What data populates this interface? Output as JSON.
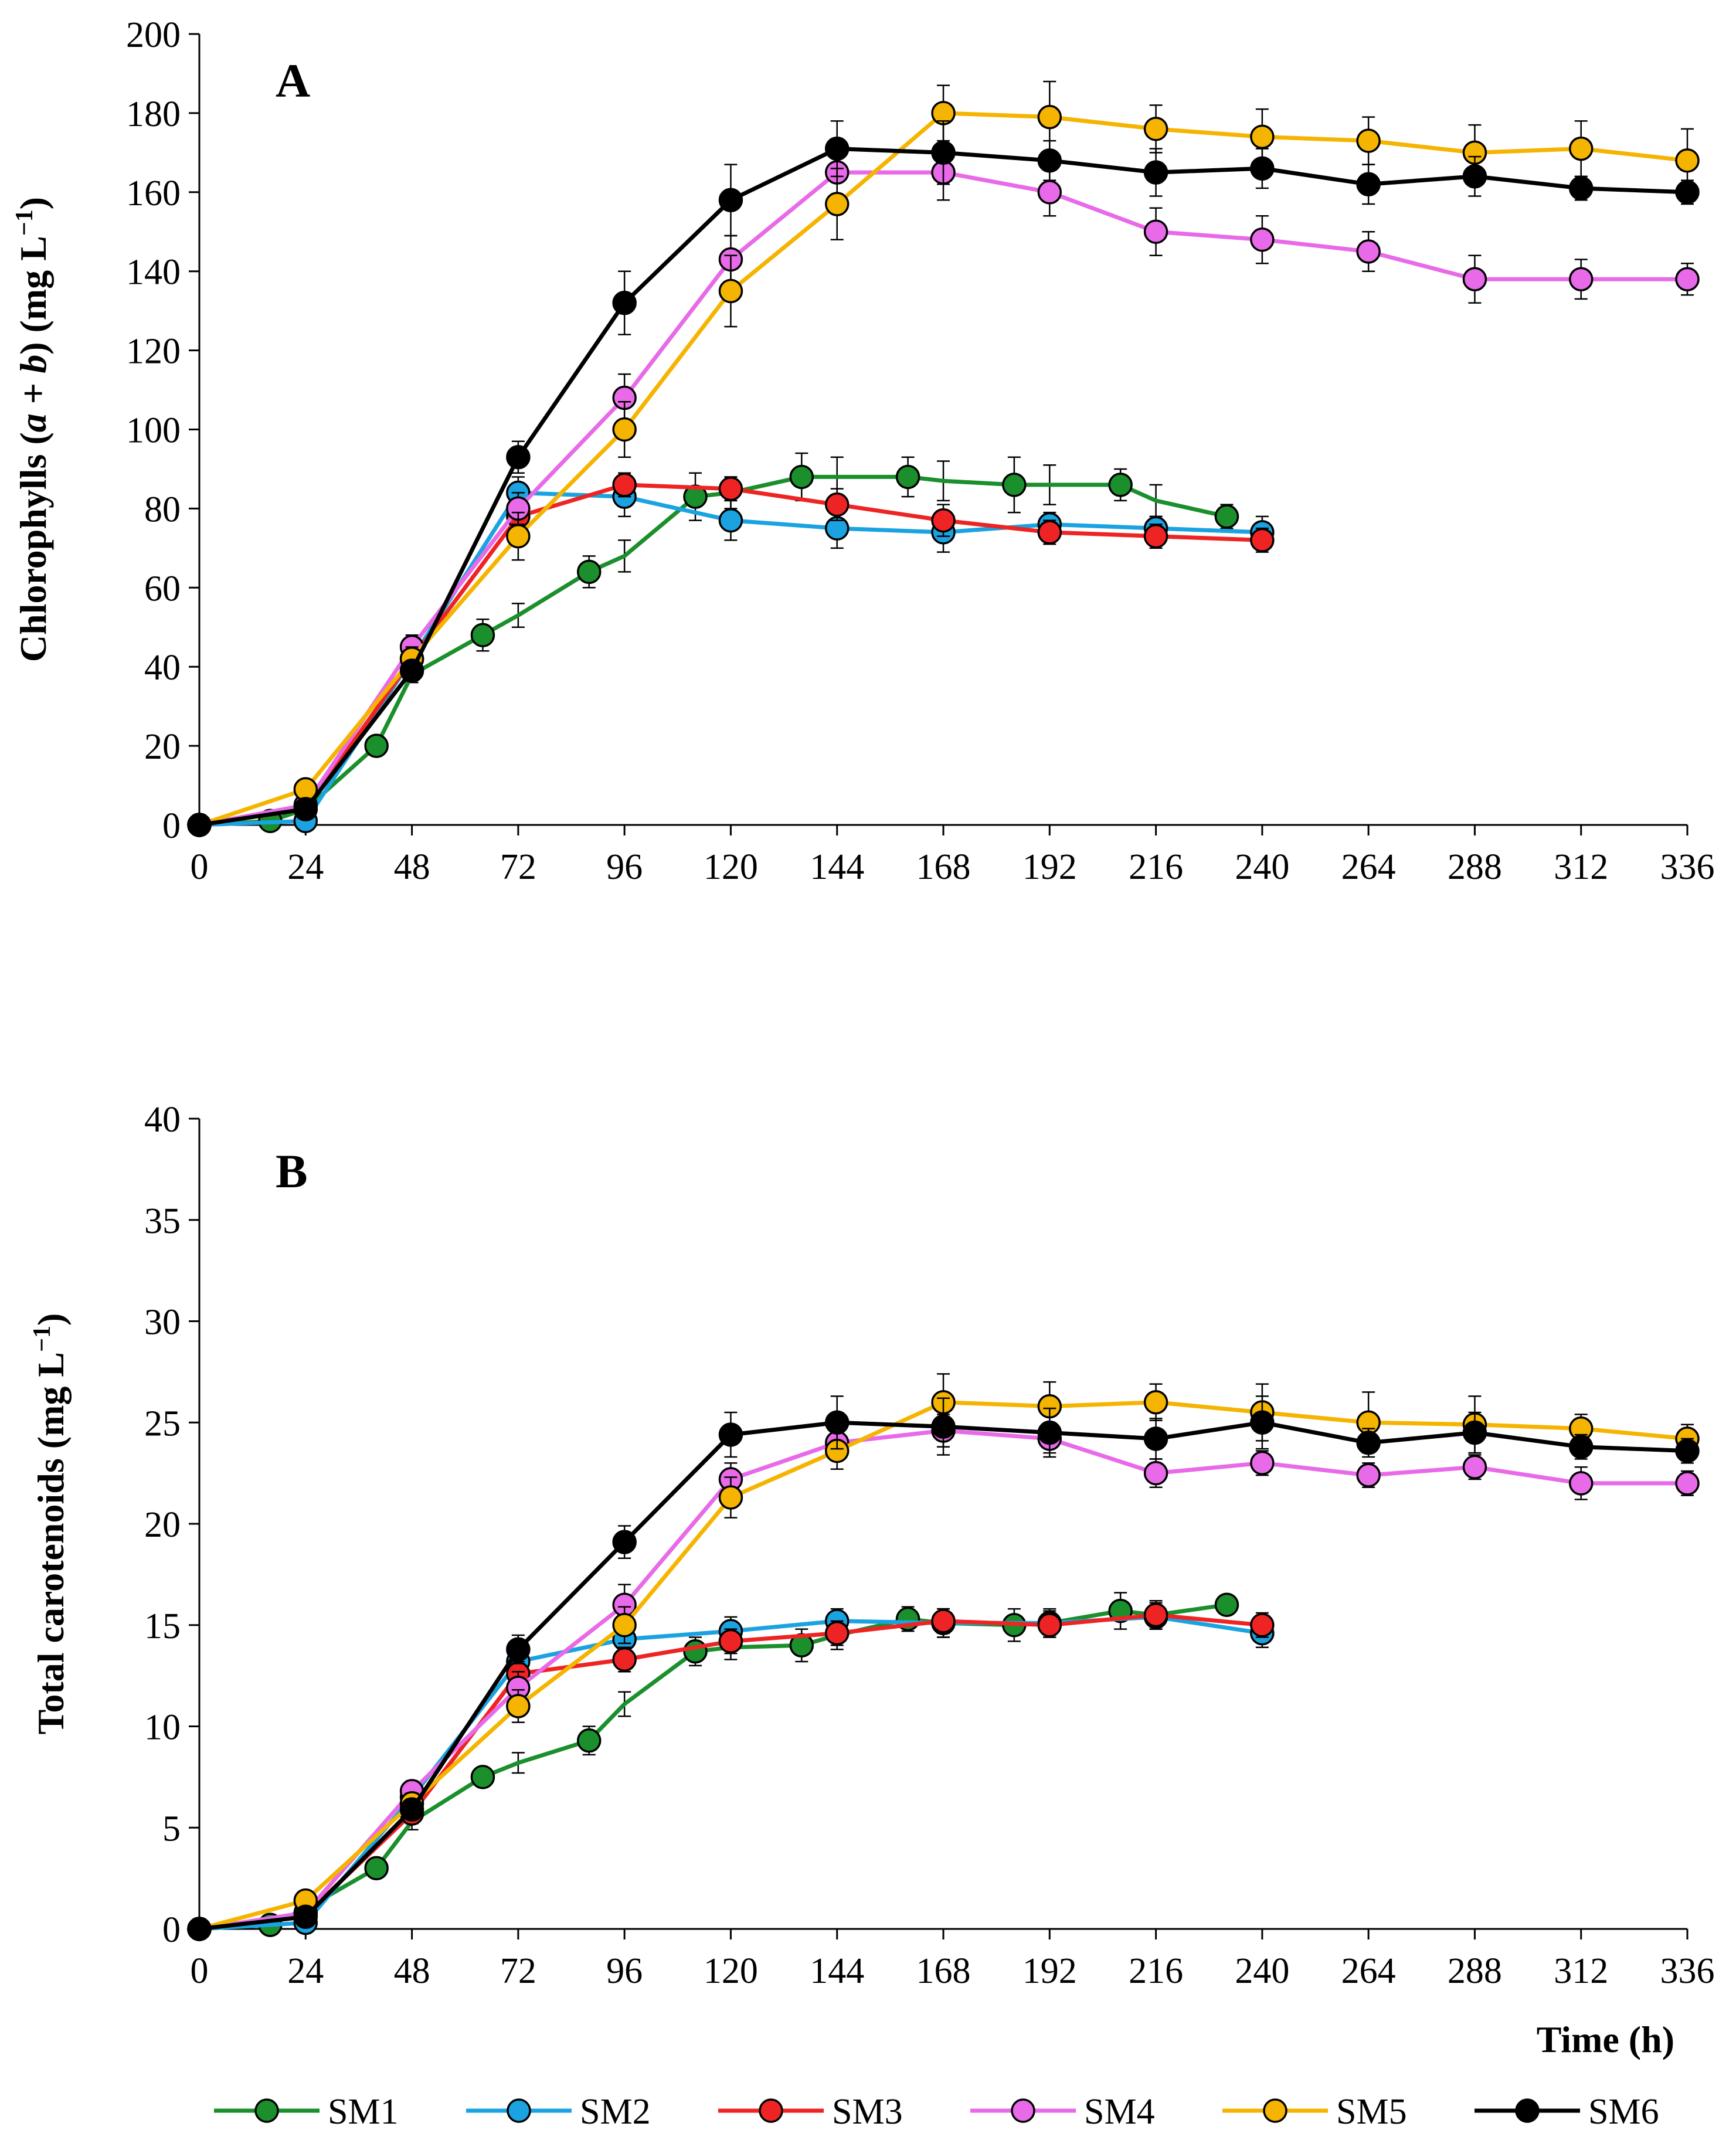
{
  "chart_data": [
    {
      "type": "line",
      "panel_label": "A",
      "ylabel_parts": [
        "Chlorophylls (",
        "a",
        " + ",
        "b",
        ") (mg L",
        "−1",
        ")"
      ],
      "ylim": [
        0,
        200
      ],
      "yticks": [
        0,
        20,
        40,
        60,
        80,
        100,
        120,
        140,
        160,
        180,
        200
      ],
      "xlim": [
        0,
        336
      ],
      "xticks": [
        0,
        24,
        48,
        72,
        96,
        120,
        144,
        168,
        192,
        216,
        240,
        264,
        288,
        312,
        336
      ],
      "xlabel": "",
      "series": [
        {
          "name": "SM1",
          "color": "#1a8f2c",
          "x": [
            0,
            16,
            24,
            40,
            48,
            64,
            72,
            88,
            96,
            112,
            120,
            136,
            144,
            160,
            168,
            184,
            192,
            208,
            216,
            232
          ],
          "y": [
            0,
            1,
            4,
            20,
            38,
            48,
            53,
            64,
            68,
            83,
            84,
            88,
            88,
            88,
            87,
            86,
            86,
            86,
            82,
            78
          ],
          "err": [
            0,
            1,
            1,
            1,
            2,
            4,
            3,
            4,
            4,
            6,
            4,
            6,
            5,
            5,
            5,
            7,
            5,
            4,
            4,
            3
          ],
          "markers": [
            0,
            1,
            3,
            5,
            7,
            9,
            11,
            13,
            15,
            17,
            19
          ]
        },
        {
          "name": "SM2",
          "color": "#1aa3e0",
          "x": [
            0,
            24,
            48,
            72,
            96,
            120,
            144,
            168,
            192,
            216,
            240
          ],
          "y": [
            0,
            1,
            42,
            84,
            83,
            77,
            75,
            74,
            76,
            75,
            74
          ],
          "err": [
            0,
            1,
            3,
            4,
            5,
            5,
            5,
            5,
            3,
            3,
            4
          ]
        },
        {
          "name": "SM3",
          "color": "#ee2424",
          "x": [
            0,
            24,
            48,
            72,
            96,
            120,
            144,
            168,
            192,
            216,
            240
          ],
          "y": [
            0,
            4,
            42,
            78,
            86,
            85,
            81,
            77,
            74,
            73,
            72
          ],
          "err": [
            0,
            1,
            3,
            4,
            3,
            3,
            4,
            4,
            3,
            3,
            3
          ]
        },
        {
          "name": "SM4",
          "color": "#e86ae8",
          "x": [
            0,
            24,
            48,
            72,
            96,
            120,
            144,
            168,
            192,
            216,
            240,
            264,
            288,
            312,
            336
          ],
          "y": [
            0,
            5,
            45,
            80,
            108,
            143,
            165,
            165,
            160,
            150,
            148,
            145,
            138,
            138,
            138
          ],
          "err": [
            0,
            1,
            3,
            4,
            6,
            6,
            6,
            7,
            6,
            6,
            6,
            5,
            6,
            5,
            4
          ]
        },
        {
          "name": "SM5",
          "color": "#f4b400",
          "x": [
            0,
            24,
            48,
            72,
            96,
            120,
            144,
            168,
            192,
            216,
            240,
            264,
            288,
            312,
            336
          ],
          "y": [
            0,
            9,
            42,
            73,
            100,
            135,
            157,
            180,
            179,
            176,
            174,
            173,
            170,
            171,
            168
          ],
          "err": [
            0,
            1,
            3,
            6,
            7,
            9,
            9,
            7,
            9,
            6,
            7,
            6,
            7,
            7,
            8
          ]
        },
        {
          "name": "SM6",
          "color": "#000000",
          "x": [
            0,
            24,
            48,
            72,
            96,
            120,
            144,
            168,
            192,
            216,
            240,
            264,
            288,
            312,
            336
          ],
          "y": [
            0,
            4,
            39,
            93,
            132,
            158,
            171,
            170,
            168,
            165,
            166,
            162,
            164,
            161,
            160
          ],
          "err": [
            0,
            1,
            2,
            4,
            8,
            9,
            7,
            8,
            5,
            6,
            5,
            5,
            5,
            3,
            3
          ]
        }
      ]
    },
    {
      "type": "line",
      "panel_label": "B",
      "ylabel_parts": [
        "Total carotenoids (mg L",
        "−1",
        ")"
      ],
      "ylim": [
        0,
        40
      ],
      "yticks": [
        0,
        5,
        10,
        15,
        20,
        25,
        30,
        35,
        40
      ],
      "xlim": [
        0,
        336
      ],
      "xticks": [
        0,
        24,
        48,
        72,
        96,
        120,
        144,
        168,
        192,
        216,
        240,
        264,
        288,
        312,
        336
      ],
      "xlabel": "Time (h)",
      "series": [
        {
          "name": "SM1",
          "color": "#1a8f2c",
          "x": [
            0,
            16,
            24,
            40,
            48,
            64,
            72,
            88,
            96,
            112,
            120,
            136,
            144,
            160,
            168,
            184,
            192,
            208,
            216,
            232
          ],
          "y": [
            0,
            0.2,
            1,
            3,
            5.3,
            7.5,
            8.2,
            9.3,
            11.1,
            13.7,
            13.9,
            14,
            14.5,
            15.3,
            15.1,
            15,
            15.1,
            15.7,
            15.5,
            16
          ],
          "err": [
            0,
            0.2,
            0.3,
            0.3,
            0.4,
            0.4,
            0.5,
            0.7,
            0.6,
            0.7,
            0.6,
            0.8,
            0.7,
            0.6,
            0.7,
            0.8,
            0.7,
            0.9,
            0.7,
            0.4
          ],
          "markers": [
            0,
            1,
            3,
            5,
            7,
            9,
            11,
            13,
            15,
            17,
            19
          ]
        },
        {
          "name": "SM2",
          "color": "#1aa3e0",
          "x": [
            0,
            24,
            48,
            72,
            96,
            120,
            144,
            168,
            192,
            216,
            240
          ],
          "y": [
            0,
            0.3,
            6.5,
            13.2,
            14.3,
            14.7,
            15.2,
            15.1,
            15.1,
            15.4,
            14.6
          ],
          "err": [
            0,
            0.2,
            0.5,
            0.7,
            0.8,
            0.7,
            0.6,
            0.7,
            0.6,
            0.6,
            0.7
          ]
        },
        {
          "name": "SM3",
          "color": "#ee2424",
          "x": [
            0,
            24,
            48,
            72,
            96,
            120,
            144,
            168,
            192,
            216,
            240
          ],
          "y": [
            0,
            0.7,
            5.7,
            12.6,
            13.3,
            14.2,
            14.6,
            15.2,
            15,
            15.5,
            15
          ],
          "err": [
            0,
            0.2,
            0.5,
            0.6,
            0.6,
            0.6,
            0.6,
            0.6,
            0.6,
            0.6,
            0.6
          ]
        },
        {
          "name": "SM4",
          "color": "#e86ae8",
          "x": [
            0,
            24,
            48,
            72,
            96,
            120,
            144,
            168,
            192,
            216,
            240,
            264,
            288,
            312,
            336
          ],
          "y": [
            0,
            0.8,
            6.8,
            11.9,
            16,
            22.2,
            24,
            24.6,
            24.2,
            22.5,
            23,
            22.4,
            22.8,
            22,
            22
          ],
          "err": [
            0,
            0.2,
            0.5,
            0.8,
            1,
            0.8,
            0.7,
            0.8,
            0.7,
            0.7,
            0.6,
            0.6,
            0.6,
            0.8,
            0.6
          ]
        },
        {
          "name": "SM5",
          "color": "#f4b400",
          "x": [
            0,
            24,
            48,
            72,
            96,
            120,
            144,
            168,
            192,
            216,
            240,
            264,
            288,
            312,
            336
          ],
          "y": [
            0,
            1.4,
            6.2,
            11,
            15,
            21.3,
            23.6,
            26,
            25.8,
            26,
            25.5,
            25,
            24.9,
            24.7,
            24.2
          ],
          "err": [
            0,
            0.3,
            0.5,
            0.8,
            0.9,
            1,
            0.9,
            1.4,
            1.2,
            0.9,
            1.4,
            1.5,
            1.4,
            0.7,
            0.7
          ]
        },
        {
          "name": "SM6",
          "color": "#000000",
          "x": [
            0,
            24,
            48,
            72,
            96,
            120,
            144,
            168,
            192,
            216,
            240,
            264,
            288,
            312,
            336
          ],
          "y": [
            0,
            0.6,
            5.9,
            13.8,
            19.1,
            24.4,
            25,
            24.8,
            24.5,
            24.2,
            25,
            24,
            24.5,
            23.8,
            23.6
          ],
          "err": [
            0,
            0.2,
            0.5,
            0.7,
            0.8,
            1.1,
            1.3,
            1.4,
            1.2,
            1,
            1.3,
            0.7,
            1,
            0.6,
            0.6
          ]
        }
      ]
    }
  ],
  "legend": {
    "position": "bottom",
    "items": [
      {
        "name": "SM1",
        "color": "#1a8f2c"
      },
      {
        "name": "SM2",
        "color": "#1aa3e0"
      },
      {
        "name": "SM3",
        "color": "#ee2424"
      },
      {
        "name": "SM4",
        "color": "#e86ae8"
      },
      {
        "name": "SM5",
        "color": "#f4b400"
      },
      {
        "name": "SM6",
        "color": "#000000"
      }
    ]
  }
}
